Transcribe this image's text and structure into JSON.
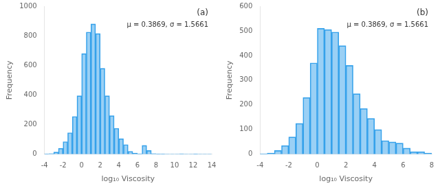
{
  "chart_data": [
    {
      "type": "histogram",
      "bins": [
        -4.0,
        -3.5,
        -3.0,
        -2.5,
        -2.0,
        -1.5,
        -1.0,
        -0.5,
        0.0,
        0.5,
        1.0,
        1.5,
        2.0,
        2.5,
        3.0,
        3.5,
        4.0,
        4.5,
        5.0,
        5.5,
        6.0,
        6.5,
        7.0,
        7.5,
        8.0,
        8.5,
        9.0,
        9.5,
        10.0,
        10.5,
        11.0,
        11.5,
        12.0,
        12.5,
        13.0,
        13.5,
        14.0
      ],
      "values": [
        2,
        5,
        15,
        40,
        85,
        145,
        255,
        395,
        680,
        825,
        880,
        815,
        580,
        395,
        260,
        175,
        105,
        65,
        20,
        8,
        3,
        60,
        25,
        5,
        2,
        2,
        1,
        1,
        1,
        3,
        1,
        1,
        2,
        1,
        1,
        1
      ],
      "xlim": [
        -4,
        14
      ],
      "ylim": [
        0,
        1000
      ],
      "xticks": [
        -4,
        -2,
        0,
        2,
        4,
        6,
        8,
        10,
        12,
        14
      ],
      "yticks": [
        0,
        200,
        400,
        600,
        800,
        1000
      ],
      "xlabel": "log₁₀ Viscosity",
      "ylabel": "Frequency",
      "annotations": [
        "μ = 0.3869, σ = 1.5661",
        "(a)"
      ],
      "grid": false
    },
    {
      "type": "histogram",
      "bins": [
        -4.0,
        -3.5,
        -3.0,
        -2.5,
        -2.0,
        -1.5,
        -1.0,
        -0.5,
        0.0,
        0.5,
        1.0,
        1.5,
        2.0,
        2.5,
        3.0,
        3.5,
        4.0,
        4.5,
        5.0,
        5.5,
        6.0,
        6.5,
        7.0,
        7.5,
        8.0
      ],
      "values": [
        2,
        5,
        15,
        35,
        70,
        125,
        230,
        370,
        510,
        505,
        495,
        440,
        360,
        245,
        185,
        145,
        100,
        55,
        50,
        45,
        25,
        10,
        10,
        5
      ],
      "xlim": [
        -4,
        8
      ],
      "ylim": [
        0,
        600
      ],
      "xticks": [
        -4,
        -2,
        0,
        2,
        4,
        6,
        8
      ],
      "yticks": [
        0,
        100,
        200,
        300,
        400,
        500,
        600
      ],
      "xlabel": "log₁₀ Viscosity",
      "ylabel": "Frequency",
      "annotations": [
        "μ = 0.3869, σ = 1.5661",
        "(b)"
      ],
      "grid": false
    }
  ]
}
